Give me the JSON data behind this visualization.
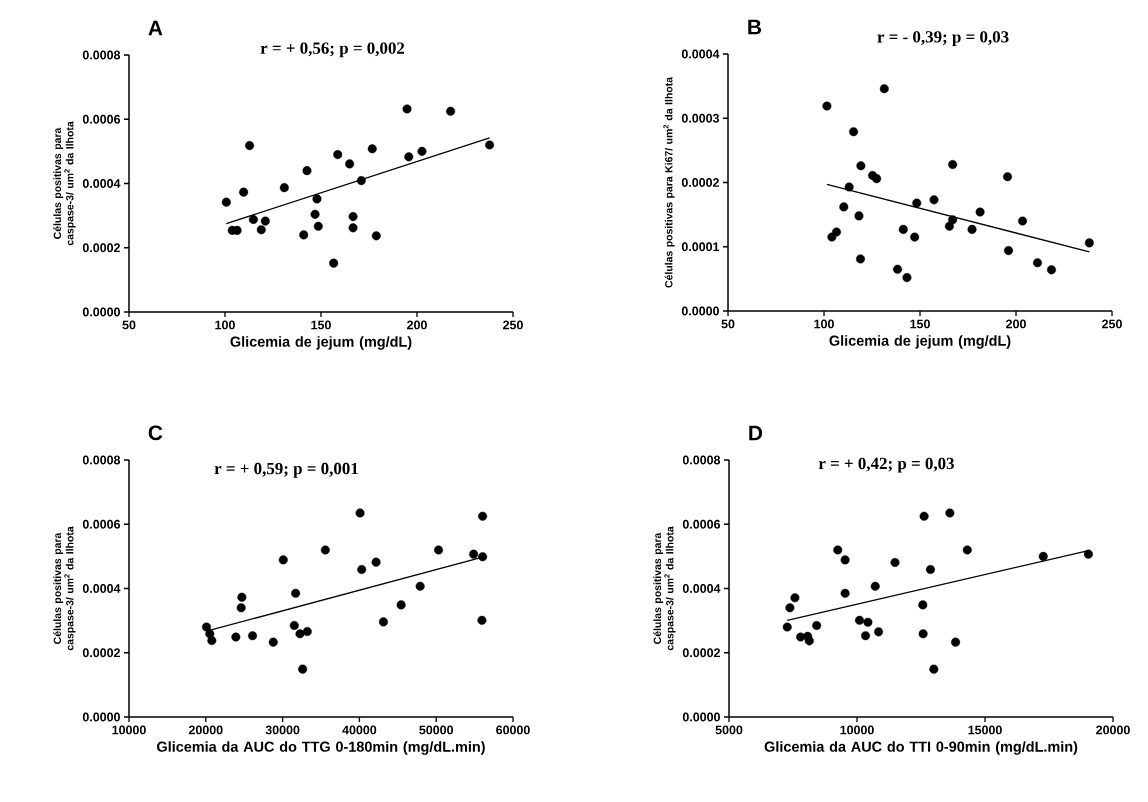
{
  "chart_data": [
    {
      "type": "scatter",
      "title": "A",
      "xlabel": "Glicemia de jejum (mg/dL)",
      "ylabel": "Células positivas para caspase-3/ um$^{2}$ da Ilhota",
      "annotations": [
        "r = + 0,56; p = 0,002"
      ],
      "xlim": [
        50,
        250
      ],
      "xticks": [
        50,
        100,
        150,
        200,
        250
      ],
      "ylim": [
        0,
        0.0008
      ],
      "yticks": [
        {
          "value": 0,
          "label": "0.0000"
        },
        {
          "value": 0.0002,
          "label": "0.0002"
        },
        {
          "value": 0.0004,
          "label": "0.0004"
        },
        {
          "value": 0.0006,
          "label": "0.0006"
        },
        {
          "value": 0.0008,
          "label": "0.0008"
        }
      ],
      "marker": "circle",
      "series": [
        {
          "color": "#000000",
          "x": [
            100.7,
            103.8,
            106.3,
            109.7,
            112.8,
            114.8,
            118.9,
            121,
            130.9,
            141,
            142.7,
            146.9,
            147.9,
            148.6,
            156.6,
            158.7,
            164.9,
            166.7,
            166.7,
            171,
            176.7,
            178.8,
            194.8,
            195.7,
            202.6,
            217.5,
            237.8
          ],
          "values": [
            0.000342,
            0.000254,
            0.000254,
            0.000373,
            0.000518,
            0.000288,
            0.000256,
            0.000283,
            0.000387,
            0.00024,
            0.00044,
            0.000304,
            0.000352,
            0.000267,
            0.000152,
            0.00049,
            0.000461,
            0.000297,
            0.000262,
            0.000409,
            0.000508,
            0.000237,
            0.000632,
            0.000483,
            0.0005,
            0.000625,
            0.00052
          ]
        },
        {
          "type": "line",
          "color": "#000000",
          "marker": "none",
          "line_style": "solid",
          "x": [
            100.7,
            237.8
          ],
          "values": [
            0.000275,
            0.000542
          ]
        }
      ]
    },
    {
      "type": "scatter",
      "title": "B",
      "xlabel": "Glicemia de jejum (mg/dL)",
      "ylabel": "Células positivas para Ki67/ um$^{2}$ da Ilhota",
      "annotations": [
        "r = - 0,39; p = 0,03"
      ],
      "xlim": [
        50,
        250
      ],
      "xticks": [
        50,
        100,
        150,
        200,
        250
      ],
      "ylim": [
        0,
        0.0004
      ],
      "yticks": [
        {
          "value": 0,
          "label": "0.0000"
        },
        {
          "value": 0.0001,
          "label": "0.0001"
        },
        {
          "value": 0.0002,
          "label": "0.0002"
        },
        {
          "value": 0.0003,
          "label": "0.0003"
        },
        {
          "value": 0.0004,
          "label": "0.0004"
        }
      ],
      "marker": "circle",
      "series": [
        {
          "color": "#000000",
          "x": [
            101.5,
            104.1,
            106.5,
            110.3,
            113.1,
            115.4,
            118.2,
            119.2,
            119,
            125.3,
            127.4,
            131.4,
            138.3,
            141.3,
            143.2,
            147.2,
            148.3,
            157.3,
            165.3,
            167,
            167,
            177.1,
            181.3,
            195.6,
            196.1,
            203.4,
            211.2,
            218.5,
            238.2
          ],
          "values": [
            0.000319,
            0.000115,
            0.000123,
            0.000162,
            0.000193,
            0.000279,
            0.000148,
            0.000226,
            8.1e-05,
            0.000211,
            0.000206,
            0.000346,
            6.5e-05,
            0.000127,
            5.2e-05,
            0.000115,
            0.000168,
            0.000173,
            0.000132,
            0.000228,
            0.000142,
            0.000127,
            0.000154,
            0.000209,
            9.4e-05,
            0.00014,
            7.5e-05,
            6.4e-05,
            0.000106
          ]
        },
        {
          "type": "line",
          "color": "#000000",
          "marker": "none",
          "line_style": "solid",
          "x": [
            101.5,
            238.2
          ],
          "values": [
            0.000197,
            9.2e-05
          ]
        }
      ]
    },
    {
      "type": "scatter",
      "title": "C",
      "xlabel": "Glicemia da AUC do TTG 0-180min (mg/dL.min)",
      "ylabel": "Células positivas para caspase-3/ um$^{2}$ da Ilhota",
      "annotations": [
        "r = + 0,59; p = 0,001"
      ],
      "xlim": [
        10000,
        60000
      ],
      "xticks": [
        10000,
        20000,
        30000,
        40000,
        50000,
        60000
      ],
      "ylim": [
        0,
        0.0008
      ],
      "yticks": [
        {
          "value": 0,
          "label": "0.0000"
        },
        {
          "value": 0.0002,
          "label": "0.0002"
        },
        {
          "value": 0.0004,
          "label": "0.0004"
        },
        {
          "value": 0.0006,
          "label": "0.0006"
        },
        {
          "value": 0.0008,
          "label": "0.0008"
        }
      ],
      "marker": "circle",
      "series": [
        {
          "color": "#000000",
          "x": [
            20087,
            20522,
            20783,
            23913,
            24696,
            24609,
            26087,
            28783,
            30087,
            31696,
            31522,
            32261,
            32609,
            33217,
            35565,
            40087,
            40304,
            42174,
            43130,
            45435,
            47913,
            50304,
            54870,
            56043,
            56043,
            55957
          ],
          "values": [
            0.00028,
            0.000259,
            0.000238,
            0.000249,
            0.000373,
            0.00034,
            0.000253,
            0.000233,
            0.000489,
            0.000385,
            0.000285,
            0.000259,
            0.000149,
            0.000266,
            0.00052,
            0.000635,
            0.000459,
            0.000482,
            0.000296,
            0.000349,
            0.000407,
            0.00052,
            0.000507,
            0.000625,
            0.000499,
            0.000301
          ]
        },
        {
          "type": "line",
          "color": "#000000",
          "marker": "none",
          "line_style": "solid",
          "x": [
            20087,
            56043
          ],
          "values": [
            0.000267,
            0.000498
          ]
        }
      ]
    },
    {
      "type": "scatter",
      "title": "D",
      "xlabel": "Glicemia da AUC do TTI 0-90min (mg/dL.min)",
      "ylabel": "Células positivas para caspase-3/ um$^{2}$ da Ilhota",
      "annotations": [
        "r = + 0,42; p = 0,03"
      ],
      "xlim": [
        5000,
        20000
      ],
      "xticks": [
        5000,
        10000,
        15000,
        20000
      ],
      "ylim": [
        0,
        0.0008
      ],
      "yticks": [
        {
          "value": 0,
          "label": "0.0000"
        },
        {
          "value": 0.0002,
          "label": "0.0002"
        },
        {
          "value": 0.0004,
          "label": "0.0004"
        },
        {
          "value": 0.0006,
          "label": "0.0006"
        },
        {
          "value": 0.0008,
          "label": "0.0008"
        }
      ],
      "marker": "circle",
      "series": [
        {
          "color": "#000000",
          "x": [
            7275,
            7379,
            7575,
            7797,
            8072,
            8137,
            8425,
            9248,
            9536,
            9536,
            10098,
            10425,
            10333,
            10843,
            10712,
            11484,
            12569,
            12582,
            12621,
            12869,
            13000,
            13627,
            13850,
            14307,
            17275,
            19039
          ],
          "values": [
            0.00028,
            0.00034,
            0.000371,
            0.000249,
            0.000251,
            0.000237,
            0.000285,
            0.00052,
            0.000489,
            0.000385,
            0.000301,
            0.000295,
            0.000253,
            0.000265,
            0.000407,
            0.000481,
            0.000349,
            0.000259,
            0.000625,
            0.000459,
            0.000149,
            0.000635,
            0.000233,
            0.00052,
            0.0005,
            0.000507
          ]
        },
        {
          "type": "line",
          "color": "#000000",
          "marker": "none",
          "line_style": "solid",
          "x": [
            7275,
            19039
          ],
          "values": [
            0.000301,
            0.000518
          ]
        }
      ]
    }
  ]
}
